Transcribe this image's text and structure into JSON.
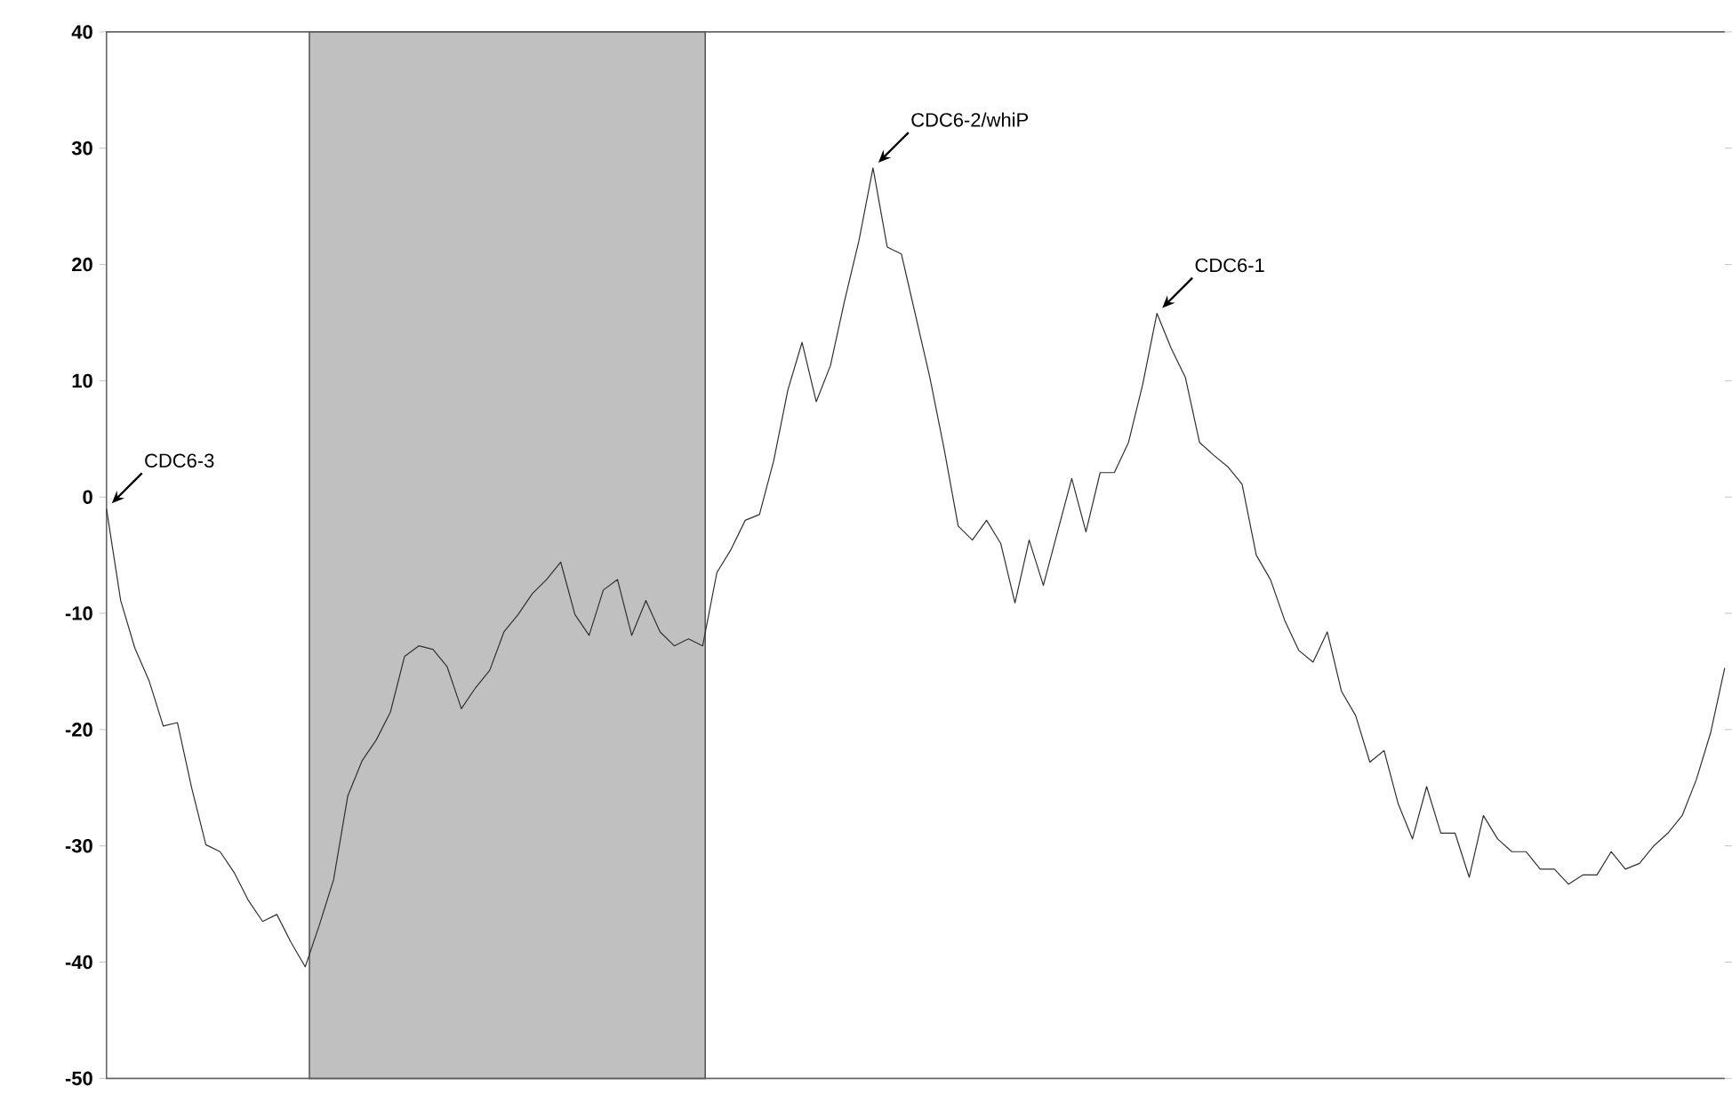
{
  "chart_data": {
    "type": "line",
    "categories": [
      null,
      null,
      null,
      null,
      null,
      null,
      null,
      null,
      null,
      null,
      null,
      null,
      null,
      null,
      null,
      null,
      null,
      null,
      null,
      null,
      null,
      null,
      null,
      null,
      null,
      null,
      null,
      null,
      null,
      null,
      null,
      null,
      null,
      null,
      null,
      null,
      null,
      null,
      null,
      null,
      null,
      null,
      null,
      null,
      null,
      null,
      null,
      null,
      null,
      null,
      null,
      null,
      null,
      null,
      null,
      null,
      null,
      null,
      null,
      null,
      null,
      null,
      null,
      null,
      null,
      null,
      null,
      null,
      null,
      null,
      null,
      null,
      null,
      null,
      null,
      null,
      null,
      null,
      null,
      null,
      null,
      null,
      null,
      null,
      null,
      null,
      null,
      null,
      null,
      null,
      null,
      null,
      null,
      null,
      null,
      null,
      null,
      null,
      null,
      null,
      null,
      null,
      null,
      null,
      null,
      null,
      null,
      null,
      null,
      null,
      null,
      null,
      null,
      null,
      null
    ],
    "series": [
      {
        "color": "#303030",
        "values": [
          -1,
          -8.9,
          -13,
          -15.8,
          -19.7,
          -19.4,
          -25,
          -29.9,
          -30.5,
          -32.3,
          -34.7,
          -36.5,
          -35.9,
          -38.3,
          -40.4,
          -36.8,
          -32.9,
          -25.7,
          -22.7,
          -20.9,
          -18.5,
          -13.7,
          -12.8,
          -13.1,
          -14.6,
          -18.2,
          -16.4,
          -14.9,
          -11.6,
          -10.1,
          -8.3,
          -7.1,
          -5.6,
          -10.1,
          -11.9,
          -8,
          -7.1,
          -11.9,
          -8.9,
          -11.6,
          -12.8,
          -12.2,
          -12.8,
          -6.5,
          -4.5,
          -2,
          -1.5,
          3.1,
          9.2,
          13.3,
          8.2,
          11.3,
          16.9,
          22,
          28.3,
          21.5,
          20.9,
          15.6,
          10.3,
          4.2,
          -2.5,
          -3.7,
          -2,
          -4,
          -9.1,
          -3.7,
          -7.6,
          -3,
          1.6,
          -3,
          2.1,
          2.1,
          4.7,
          9.7,
          15.8,
          12.8,
          10.3,
          4.7,
          3.6,
          2.6,
          1.1,
          -5,
          -7.1,
          -10.6,
          -13.2,
          -14.2,
          -11.6,
          -16.7,
          -18.8,
          -22.8,
          -21.8,
          -26.4,
          -29.4,
          -24.9,
          -28.9,
          -28.9,
          -32.7,
          -27.4,
          -29.4,
          -30.5,
          -30.5,
          -32,
          -32,
          -33.3,
          -32.5,
          -32.5,
          -30.5,
          -32,
          -31.5,
          -30,
          -28.9,
          -27.4,
          -24.3,
          -20.3,
          -14.7
        ]
      }
    ],
    "ylim": [
      -50,
      40
    ],
    "yticks": [
      -50,
      -40,
      -30,
      -20,
      -10,
      0,
      10,
      20,
      30,
      40
    ],
    "tick_labels": "y",
    "annotations": [
      "CDC6-3",
      "CDC6-2/whiP",
      "CDC6-1"
    ]
  }
}
